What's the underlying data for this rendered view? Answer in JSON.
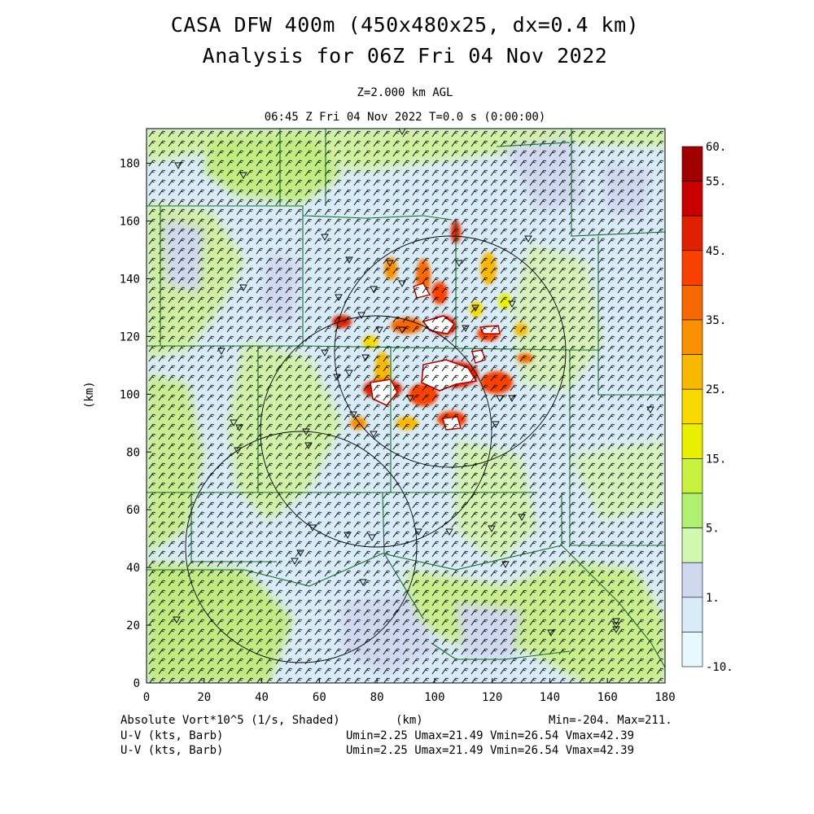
{
  "header": {
    "title_line1": "CASA DFW 400m (450x480x25, dx=0.4 km)",
    "title_line2": "Analysis for 06Z Fri 04 Nov 2022",
    "level": "Z=2.000 km AGL",
    "time_line": "06:45 Z Fri 04 Nov 2022    T=0.0 s (0:00:00)"
  },
  "axes": {
    "x_label": "(km)",
    "y_label": "(km)",
    "x_ticks": [
      "0",
      "20",
      "40",
      "60",
      "80",
      "100",
      "120",
      "140",
      "160",
      "180"
    ],
    "y_ticks": [
      "0",
      "20",
      "40",
      "60",
      "80",
      "100",
      "120",
      "140",
      "160",
      "180"
    ],
    "x_range": [
      0,
      180
    ],
    "y_range": [
      0,
      192
    ]
  },
  "colorbar": {
    "labels": [
      "60.",
      "55.",
      "45.",
      "35.",
      "25.",
      "15.",
      "5.",
      "1.",
      "-10."
    ],
    "colors": [
      "#a00000",
      "#c80000",
      "#e02000",
      "#f84000",
      "#f86800",
      "#f89000",
      "#f8b800",
      "#f8d800",
      "#e8f000",
      "#c8f040",
      "#b0f070",
      "#d0f8b0",
      "#d0d8f0",
      "#d8ecf8",
      "#e8f8ff"
    ]
  },
  "footer": {
    "field_label": "Absolute Vort*10^5 (1/s, Shaded)",
    "x_unit": "(km)",
    "minmax": "Min=-204. Max=211.",
    "uv_label_1": "U-V (kts, Barb)",
    "uv_stats_1": "Umin=2.25 Umax=21.49 Vmin=26.54 Vmax=42.39",
    "uv_label_2": "U-V (kts, Barb)",
    "uv_stats_2": "Umin=2.25 Umax=21.49 Vmin=26.54 Vmax=42.39"
  },
  "map": {
    "radar_count": 3,
    "station_marker": "inverted-triangle",
    "wind_symbol": "wind-barb"
  }
}
